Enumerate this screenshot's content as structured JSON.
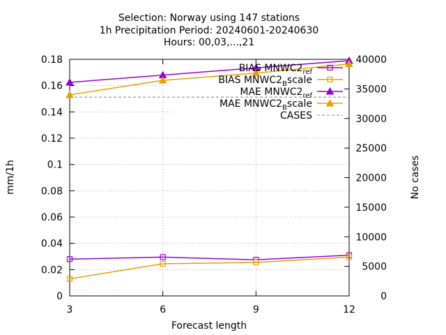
{
  "chart_data": {
    "type": "line",
    "title_lines": [
      "Selection: Norway using   147 stations",
      "1h Precipitation   Period: 20240601-20240630",
      "Hours: 00,03,...,21"
    ],
    "xlabel": "Forecast length",
    "ylabel": "mm/1h",
    "y2label": "No cases",
    "x": [
      3,
      6,
      9,
      12
    ],
    "xlim": [
      3,
      12
    ],
    "ylim": [
      0,
      0.18
    ],
    "y2lim": [
      0,
      40000
    ],
    "xticks": [
      "3",
      "6",
      "9",
      "12"
    ],
    "yticks": [
      "0",
      "0.02",
      "0.04",
      "0.06",
      "0.08",
      "0.1",
      "0.12",
      "0.14",
      "0.16",
      "0.18"
    ],
    "y2ticks": [
      "0",
      "5000",
      "10000",
      "15000",
      "20000",
      "25000",
      "30000",
      "35000",
      "40000"
    ],
    "grid": true,
    "legend_position": "top-right",
    "series": [
      {
        "name": "BIAS MNWC2_ref",
        "legend_main": "BIAS MNWC2",
        "legend_sub": "ref",
        "color": "#9400d3",
        "marker": "square",
        "axis": "y",
        "values": [
          0.028,
          0.0295,
          0.0275,
          0.031
        ]
      },
      {
        "name": "BIAS MNWC2_Bscale",
        "legend_main": "BIAS MNWC2",
        "legend_sub": "B",
        "legend_tail": "scale",
        "color": "#e69f00",
        "marker": "square",
        "axis": "y",
        "values": [
          0.013,
          0.0245,
          0.0255,
          0.0295
        ]
      },
      {
        "name": "MAE MNWC2_ref",
        "legend_main": "MAE MNWC2",
        "legend_sub": "ref",
        "color": "#9400d3",
        "marker": "triangle",
        "axis": "y",
        "values": [
          0.1625,
          0.168,
          0.1735,
          0.179
        ]
      },
      {
        "name": "MAE MNWC2_Bscale",
        "legend_main": "MAE MNWC2",
        "legend_sub": "B",
        "legend_tail": "scale",
        "color": "#e69f00",
        "marker": "triangle",
        "axis": "y",
        "values": [
          0.153,
          0.164,
          0.1695,
          0.1765
        ]
      },
      {
        "name": "CASES",
        "legend_main": "CASES",
        "color": "#a0a0a0",
        "marker": "none",
        "dashed": true,
        "axis": "y2",
        "values": [
          33600,
          33600,
          33600,
          33600
        ]
      }
    ]
  }
}
